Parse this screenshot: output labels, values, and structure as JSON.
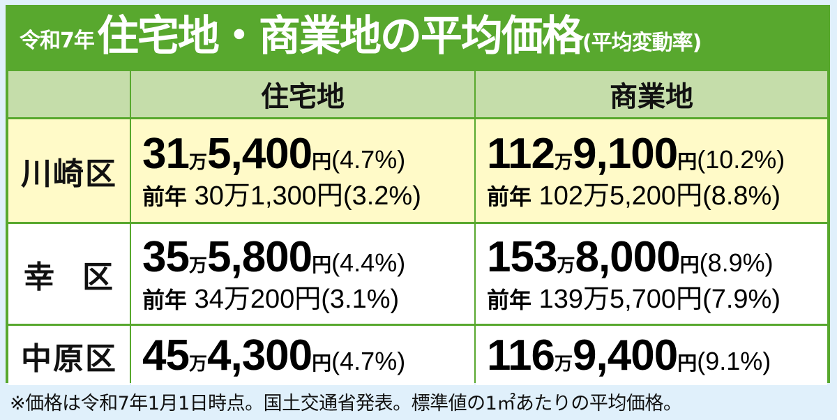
{
  "title": {
    "prefix": "令和7年",
    "main": "住宅地・商業地の平均価格",
    "suffix": "(平均変動率)"
  },
  "columns": [
    "",
    "住宅地",
    "商業地"
  ],
  "colors": {
    "title_bg": "#58a82e",
    "header_bg": "#c5ddaa",
    "row_highlight_bg": "#fffac8",
    "row_bg": "#ffffff",
    "page_bg": "#e0f0fb",
    "border": "#58a82e"
  },
  "rows": [
    {
      "ward": "川崎区",
      "residential": {
        "current": {
          "man": "31",
          "man_unit": "万",
          "rest": "5,400",
          "yen": "円",
          "rate": "(4.7%)"
        },
        "previous": {
          "label": "前年",
          "value": " 30万1,300円(3.2%)"
        }
      },
      "commercial": {
        "current": {
          "man": "112",
          "man_unit": "万",
          "rest": "9,100",
          "yen": "円",
          "rate": "(10.2%)"
        },
        "previous": {
          "label": "前年",
          "value": " 102万5,200円(8.8%)"
        }
      }
    },
    {
      "ward": "幸区",
      "ward_chars": [
        "幸",
        "区"
      ],
      "residential": {
        "current": {
          "man": "35",
          "man_unit": "万",
          "rest": "5,800",
          "yen": "円",
          "rate": "(4.4%)"
        },
        "previous": {
          "label": "前年",
          "value": " 34万200円(3.1%)"
        }
      },
      "commercial": {
        "current": {
          "man": "153",
          "man_unit": "万",
          "rest": "8,000",
          "yen": "円",
          "rate": "(8.9%)"
        },
        "previous": {
          "label": "前年",
          "value": " 139万5,700円(7.9%)"
        }
      }
    },
    {
      "ward": "中原区",
      "residential": {
        "current": {
          "man": "45",
          "man_unit": "万",
          "rest": "4,300",
          "yen": "円",
          "rate": "(4.7%)"
        }
      },
      "commercial": {
        "current": {
          "man": "116",
          "man_unit": "万",
          "rest": "9,400",
          "yen": "円",
          "rate": "(9.1%)"
        }
      }
    }
  ],
  "footnote": "※価格は令和7年1月1日時点。国土交通省発表。標準値の1㎡あたりの平均価格。"
}
